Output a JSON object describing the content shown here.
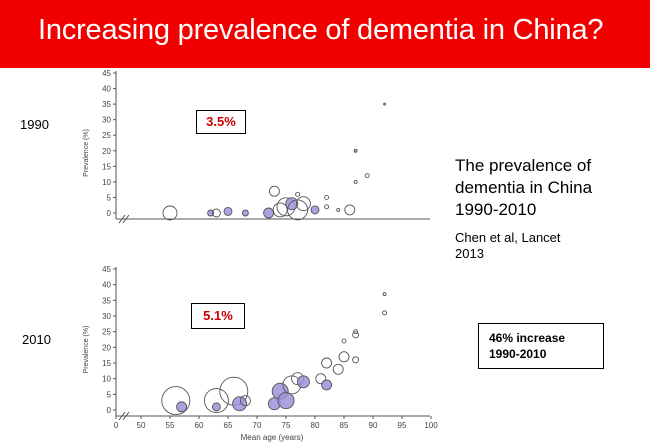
{
  "banner": {
    "title": "Increasing prevalence of dementia in China?"
  },
  "labels": {
    "year_top": "1990",
    "year_bottom": "2010"
  },
  "side": {
    "heading": [
      "The prevalence of",
      "dementia in China",
      "1990-2010"
    ],
    "citation": [
      "Chen et al, Lancet",
      "2013"
    ],
    "increase": [
      "46% increase",
      "1990-2010"
    ]
  },
  "colors": {
    "banner": "#f20000",
    "fill": "#9b93d9",
    "callout_text": "#cc0000"
  },
  "chart_data": [
    {
      "type": "scatter",
      "callout": "3.5%",
      "ylabel": "Prevalence (%)",
      "yticks": [
        "45",
        "40",
        "35",
        "30",
        "25",
        "20",
        "15",
        "10",
        "5",
        "0"
      ],
      "ylim": [
        0,
        45
      ],
      "points": [
        {
          "x": 55,
          "y": 0,
          "s": 7,
          "f": 0
        },
        {
          "x": 62,
          "y": 0,
          "s": 3,
          "f": 1
        },
        {
          "x": 63,
          "y": 0,
          "s": 4,
          "f": 0
        },
        {
          "x": 65,
          "y": 0.5,
          "s": 4,
          "f": 1
        },
        {
          "x": 68,
          "y": 0,
          "s": 3,
          "f": 1
        },
        {
          "x": 72,
          "y": 0,
          "s": 5,
          "f": 1
        },
        {
          "x": 74,
          "y": 1,
          "s": 7,
          "f": 0
        },
        {
          "x": 73,
          "y": 7,
          "s": 5,
          "f": 0
        },
        {
          "x": 75,
          "y": 2,
          "s": 9,
          "f": 0
        },
        {
          "x": 76,
          "y": 3,
          "s": 6,
          "f": 1
        },
        {
          "x": 77,
          "y": 1,
          "s": 10,
          "f": 0
        },
        {
          "x": 78,
          "y": 3,
          "s": 7,
          "f": 0
        },
        {
          "x": 77,
          "y": 6,
          "s": 2,
          "f": 0
        },
        {
          "x": 80,
          "y": 1,
          "s": 4,
          "f": 1
        },
        {
          "x": 82,
          "y": 5,
          "s": 2,
          "f": 0
        },
        {
          "x": 82,
          "y": 2,
          "s": 2,
          "f": 0
        },
        {
          "x": 84,
          "y": 1,
          "s": 1.5,
          "f": 0
        },
        {
          "x": 86,
          "y": 1,
          "s": 5,
          "f": 0
        },
        {
          "x": 87,
          "y": 20,
          "s": 1.5,
          "f": 1
        },
        {
          "x": 87,
          "y": 10,
          "s": 1.5,
          "f": 0
        },
        {
          "x": 89,
          "y": 12,
          "s": 2,
          "f": 0
        },
        {
          "x": 92,
          "y": 35,
          "s": 1,
          "f": 1
        }
      ]
    },
    {
      "type": "scatter",
      "callout": "5.1%",
      "xlabel": "Mean age (years)",
      "ylabel": "Prevalence (%)",
      "xticks": [
        "0",
        "50",
        "55",
        "60",
        "65",
        "70",
        "75",
        "80",
        "85",
        "90",
        "95",
        "100"
      ],
      "yticks": [
        "45",
        "40",
        "35",
        "30",
        "25",
        "20",
        "15",
        "10",
        "5",
        "0"
      ],
      "ylim": [
        0,
        45
      ],
      "points": [
        {
          "x": 56,
          "y": 3,
          "s": 14,
          "f": 0
        },
        {
          "x": 57,
          "y": 1,
          "s": 5,
          "f": 1
        },
        {
          "x": 63,
          "y": 3,
          "s": 12,
          "f": 0
        },
        {
          "x": 63,
          "y": 1,
          "s": 4,
          "f": 1
        },
        {
          "x": 66,
          "y": 6,
          "s": 14,
          "f": 0
        },
        {
          "x": 67,
          "y": 2,
          "s": 7,
          "f": 1
        },
        {
          "x": 68,
          "y": 3,
          "s": 5,
          "f": 0
        },
        {
          "x": 73,
          "y": 2,
          "s": 6,
          "f": 1
        },
        {
          "x": 74,
          "y": 6,
          "s": 8,
          "f": 1
        },
        {
          "x": 75,
          "y": 3,
          "s": 8,
          "f": 1
        },
        {
          "x": 76,
          "y": 8,
          "s": 9,
          "f": 0
        },
        {
          "x": 77,
          "y": 10,
          "s": 6,
          "f": 0
        },
        {
          "x": 78,
          "y": 9,
          "s": 6,
          "f": 1
        },
        {
          "x": 81,
          "y": 10,
          "s": 5,
          "f": 0
        },
        {
          "x": 82,
          "y": 8,
          "s": 5,
          "f": 1
        },
        {
          "x": 82,
          "y": 15,
          "s": 5,
          "f": 0
        },
        {
          "x": 84,
          "y": 13,
          "s": 5,
          "f": 0
        },
        {
          "x": 85,
          "y": 17,
          "s": 5,
          "f": 0
        },
        {
          "x": 85,
          "y": 22,
          "s": 2,
          "f": 0
        },
        {
          "x": 87,
          "y": 16,
          "s": 3,
          "f": 0
        },
        {
          "x": 87,
          "y": 24,
          "s": 3,
          "f": 0
        },
        {
          "x": 87,
          "y": 25,
          "s": 2,
          "f": 0
        },
        {
          "x": 92,
          "y": 31,
          "s": 2,
          "f": 0
        },
        {
          "x": 92,
          "y": 37,
          "s": 1.5,
          "f": 0
        }
      ]
    }
  ]
}
